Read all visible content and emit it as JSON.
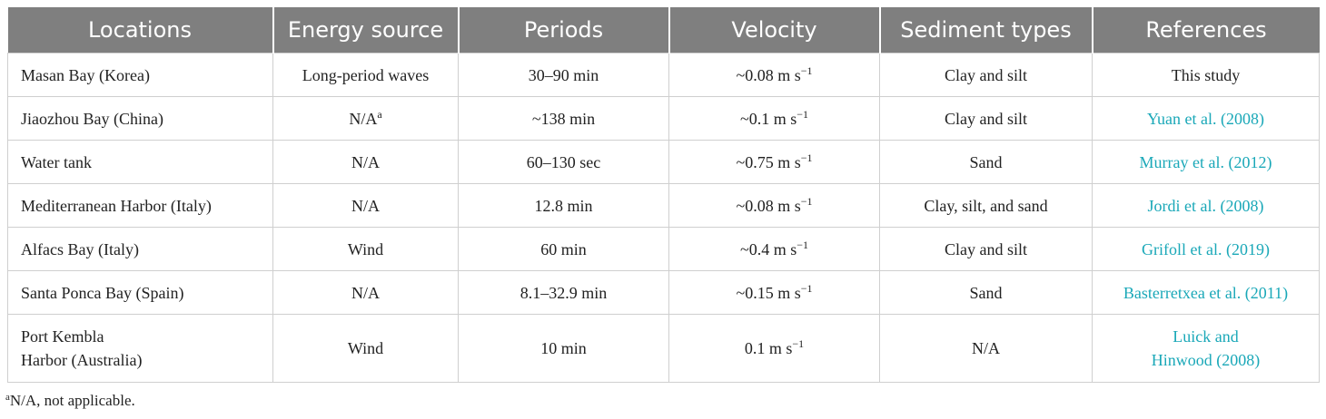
{
  "table": {
    "headers": [
      "Locations",
      "Energy source",
      "Periods",
      "Velocity",
      "Sediment types",
      "References"
    ],
    "rows": [
      {
        "location": [
          "Masan Bay (Korea)"
        ],
        "energy": "Long-period waves",
        "energy_sup": "",
        "period": "30–90 min",
        "velocity": "~0.08 m s",
        "velocity_sup": "−1",
        "sediment": "Clay and silt",
        "reference": [
          "This study"
        ],
        "ref_link": false
      },
      {
        "location": [
          "Jiaozhou Bay (China)"
        ],
        "energy": "N/A",
        "energy_sup": "a",
        "period": "~138 min",
        "velocity": "~0.1 m s",
        "velocity_sup": "−1",
        "sediment": "Clay and silt",
        "reference": [
          "Yuan et al. (2008)"
        ],
        "ref_link": true
      },
      {
        "location": [
          "Water tank"
        ],
        "energy": "N/A",
        "energy_sup": "",
        "period": "60–130 sec",
        "velocity": "~0.75 m s",
        "velocity_sup": "−1",
        "sediment": "Sand",
        "reference": [
          "Murray et al. (2012)"
        ],
        "ref_link": true
      },
      {
        "location": [
          "Mediterranean Harbor (Italy)"
        ],
        "energy": "N/A",
        "energy_sup": "",
        "period": "12.8 min",
        "velocity": "~0.08 m s",
        "velocity_sup": "−1",
        "sediment": "Clay, silt, and sand",
        "reference": [
          "Jordi et al. (2008)"
        ],
        "ref_link": true
      },
      {
        "location": [
          "Alfacs Bay (Italy)"
        ],
        "energy": "Wind",
        "energy_sup": "",
        "period": "60 min",
        "velocity": "~0.4 m s",
        "velocity_sup": "−1",
        "sediment": "Clay and silt",
        "reference": [
          "Grifoll et al. (2019)"
        ],
        "ref_link": true
      },
      {
        "location": [
          "Santa Ponca Bay (Spain)"
        ],
        "energy": "N/A",
        "energy_sup": "",
        "period": "8.1–32.9 min",
        "velocity": "~0.15 m s",
        "velocity_sup": "−1",
        "sediment": "Sand",
        "reference": [
          "Basterretxea et al. (2011)"
        ],
        "ref_link": true
      },
      {
        "location": [
          "Port Kembla",
          "Harbor (Australia)"
        ],
        "energy": "Wind",
        "energy_sup": "",
        "period": "10 min",
        "velocity": "0.1 m s",
        "velocity_sup": "−1",
        "sediment": "N/A",
        "reference": [
          "Luick and",
          "Hinwood (2008)"
        ],
        "ref_link": true
      }
    ]
  },
  "footnote": {
    "marker": "a",
    "text": "N/A, not applicable."
  },
  "colors": {
    "header_bg": "#7f7f7f",
    "header_text": "#ffffff",
    "link": "#1aa8b8",
    "border": "#cfcfcf"
  }
}
